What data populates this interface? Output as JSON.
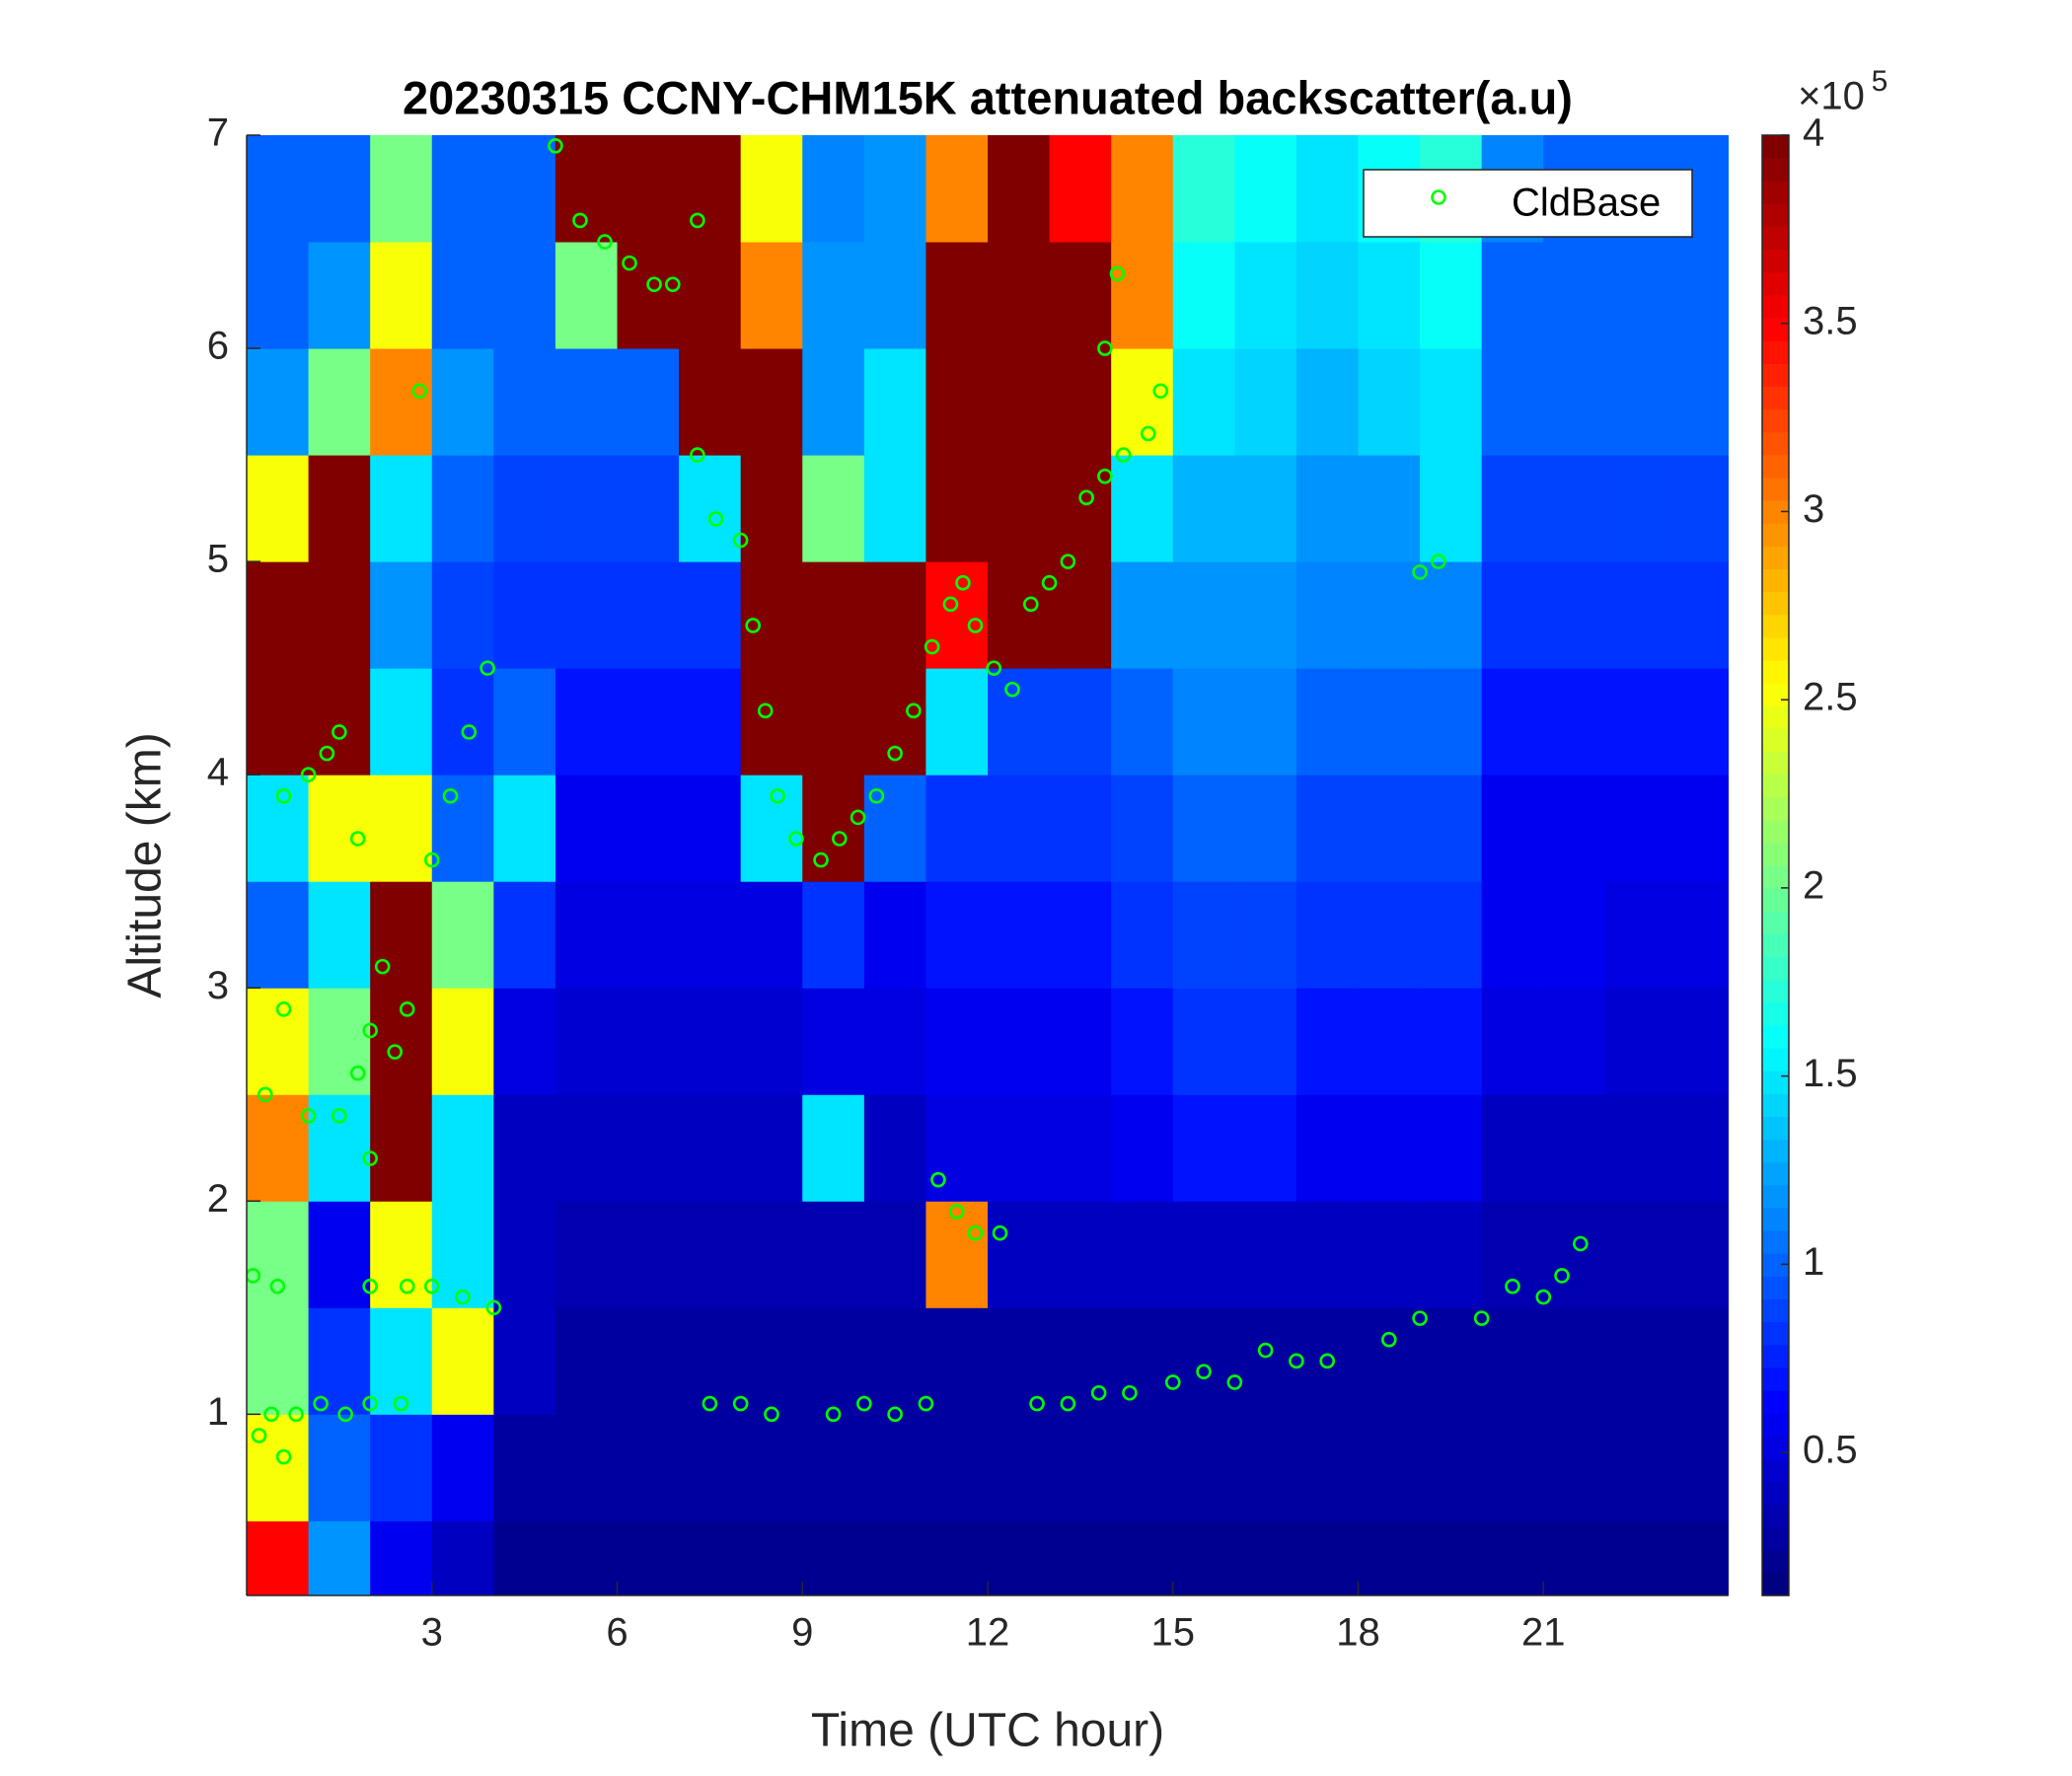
{
  "chart_data": {
    "type": "heatmap",
    "title": "20230315 CCNY-CHM15K attenuated backscatter(a.u)",
    "x_label": "Time (UTC hour)",
    "y_label": "Altitude (km)",
    "xlim": [
      0,
      24
    ],
    "ylim": [
      0.15,
      7
    ],
    "xticks": [
      3,
      6,
      9,
      12,
      15,
      18,
      21
    ],
    "yticks": [
      1,
      2,
      3,
      4,
      5,
      6,
      7
    ],
    "colormap": "jet",
    "clim": [
      0.12,
      4
    ],
    "colorbar_ticks": [
      0.5,
      1,
      1.5,
      2,
      2.5,
      3,
      3.5,
      4
    ],
    "colorbar_multiplier": "×10",
    "colorbar_exponent": "5",
    "legend_position": "upper right",
    "heatmap": {
      "x": [
        0.5,
        1.5,
        2.5,
        3.5,
        4.5,
        5.5,
        6.5,
        7.5,
        8.5,
        9.5,
        10.5,
        11.5,
        12.5,
        13.5,
        14.5,
        15.5,
        16.5,
        17.5,
        18.5,
        19.5,
        20.5,
        21.5,
        22.5,
        23.5
      ],
      "y": [
        0.25,
        0.75,
        1.25,
        1.75,
        2.25,
        2.75,
        3.25,
        3.75,
        4.25,
        4.75,
        5.25,
        5.75,
        6.25,
        6.75
      ],
      "z": [
        [
          3.5,
          1.2,
          0.6,
          0.4,
          0.2,
          0.2,
          0.2,
          0.2,
          0.2,
          0.2,
          0.2,
          0.2,
          0.2,
          0.2,
          0.2,
          0.2,
          0.2,
          0.2,
          0.2,
          0.2,
          0.2,
          0.2,
          0.2,
          0.2
        ],
        [
          2.5,
          1.0,
          0.8,
          0.6,
          0.3,
          0.25,
          0.25,
          0.25,
          0.25,
          0.25,
          0.25,
          0.25,
          0.25,
          0.25,
          0.25,
          0.25,
          0.25,
          0.25,
          0.25,
          0.25,
          0.25,
          0.25,
          0.25,
          0.25
        ],
        [
          2.0,
          0.8,
          1.5,
          2.5,
          0.4,
          0.3,
          0.3,
          0.3,
          0.3,
          0.3,
          0.3,
          0.3,
          0.3,
          0.3,
          0.3,
          0.3,
          0.3,
          0.3,
          0.3,
          0.3,
          0.3,
          0.3,
          0.3,
          0.3
        ],
        [
          2.0,
          0.6,
          2.5,
          1.5,
          0.4,
          0.35,
          0.35,
          0.35,
          0.35,
          0.35,
          0.35,
          3.0,
          0.4,
          0.4,
          0.4,
          0.4,
          0.4,
          0.4,
          0.4,
          0.4,
          0.35,
          0.35,
          0.35,
          0.35
        ],
        [
          3.0,
          1.5,
          4,
          1.5,
          0.4,
          0.4,
          0.4,
          0.4,
          0.4,
          1.5,
          0.4,
          0.5,
          0.5,
          0.5,
          0.6,
          0.7,
          0.7,
          0.6,
          0.6,
          0.6,
          0.4,
          0.4,
          0.4,
          0.4
        ],
        [
          2.5,
          2.0,
          4,
          2.5,
          0.5,
          0.45,
          0.45,
          0.45,
          0.45,
          0.5,
          0.5,
          0.6,
          0.6,
          0.6,
          0.7,
          0.8,
          0.8,
          0.7,
          0.7,
          0.7,
          0.5,
          0.5,
          0.45,
          0.45
        ],
        [
          1.0,
          1.5,
          4,
          2.0,
          0.8,
          0.5,
          0.5,
          0.5,
          0.5,
          0.8,
          0.55,
          0.7,
          0.7,
          0.7,
          0.8,
          0.9,
          0.9,
          0.8,
          0.8,
          0.8,
          0.55,
          0.55,
          0.5,
          0.5
        ],
        [
          1.5,
          2.5,
          2.5,
          1.0,
          1.5,
          0.6,
          0.6,
          0.6,
          1.5,
          4,
          1.0,
          0.8,
          0.8,
          0.8,
          0.9,
          1.0,
          1.0,
          0.9,
          0.9,
          0.9,
          0.6,
          0.6,
          0.6,
          0.6
        ],
        [
          4,
          4,
          1.5,
          0.8,
          1.0,
          0.7,
          0.7,
          0.7,
          4,
          4,
          4,
          1.5,
          0.9,
          0.9,
          1.0,
          1.1,
          1.1,
          1.0,
          1.0,
          1.0,
          0.7,
          0.7,
          0.7,
          0.7
        ],
        [
          4,
          4,
          1.2,
          0.9,
          0.8,
          0.8,
          0.8,
          0.8,
          4,
          4,
          4,
          3.5,
          4,
          4,
          1.2,
          1.2,
          1.2,
          1.1,
          1.1,
          1.1,
          0.8,
          0.8,
          0.8,
          0.8
        ],
        [
          2.5,
          4,
          1.5,
          1.0,
          0.9,
          0.9,
          0.9,
          1.5,
          4,
          2.0,
          1.5,
          4,
          4,
          4,
          1.5,
          1.3,
          1.3,
          1.2,
          1.2,
          1.5,
          0.9,
          0.9,
          0.9,
          0.9
        ],
        [
          1.2,
          2.0,
          3.0,
          1.2,
          1.0,
          1.0,
          1.0,
          4,
          4,
          1.2,
          1.5,
          4,
          4,
          4,
          2.5,
          1.5,
          1.4,
          1.3,
          1.4,
          1.5,
          1.0,
          1.0,
          1.0,
          1.0
        ],
        [
          1.0,
          1.2,
          2.5,
          1.0,
          1.0,
          2.0,
          4,
          4,
          3.0,
          1.2,
          1.2,
          4,
          4,
          4,
          3.0,
          1.6,
          1.5,
          1.4,
          1.5,
          1.6,
          1.0,
          1.0,
          1.0,
          1.0
        ],
        [
          1.0,
          1.0,
          2.0,
          1.0,
          1.0,
          4,
          4,
          4,
          2.5,
          1.1,
          1.2,
          3.0,
          4,
          3.5,
          3.0,
          1.7,
          1.6,
          1.5,
          1.6,
          1.7,
          1.1,
          1.0,
          1.0,
          1.0
        ]
      ]
    },
    "series": [
      {
        "name": "CldBase",
        "type": "scatter",
        "color": "#00ff00",
        "x": [
          0.2,
          0.4,
          0.6,
          0.8,
          1.2,
          1.6,
          2.0,
          2.5,
          0.1,
          0.5,
          0.3,
          0.6,
          1.0,
          1.5,
          1.8,
          2.0,
          2.2,
          2.4,
          2.6,
          2.0,
          1.8,
          2.0,
          2.6,
          3.0,
          3.5,
          4.0,
          0.6,
          1.0,
          1.3,
          1.5,
          2.8,
          3.0,
          3.3,
          3.6,
          3.9,
          5.0,
          5.4,
          5.8,
          6.2,
          6.6,
          6.9,
          7.3,
          7.3,
          7.6,
          8.0,
          8.2,
          8.4,
          8.6,
          8.9,
          9.3,
          9.6,
          9.9,
          10.2,
          10.5,
          10.8,
          11.1,
          11.4,
          11.6,
          11.8,
          12.1,
          12.4,
          12.7,
          13.0,
          13.3,
          13.6,
          13.9,
          14.2,
          14.6,
          14.8,
          13.9,
          14.1,
          11.2,
          11.5,
          11.8,
          12.2,
          7.5,
          8.0,
          8.5,
          9.5,
          10.0,
          10.5,
          11.0,
          12.8,
          13.3,
          13.8,
          14.3,
          15.0,
          15.5,
          16.0,
          16.5,
          17.0,
          17.5,
          18.5,
          19.0,
          19.0,
          19.3,
          20.0,
          20.5,
          21.0,
          21.3,
          21.6
        ],
        "y": [
          0.9,
          1.0,
          0.8,
          1.0,
          1.05,
          1.0,
          1.05,
          1.05,
          1.65,
          1.6,
          2.5,
          2.9,
          2.4,
          2.4,
          2.6,
          2.8,
          3.1,
          2.7,
          2.9,
          2.2,
          3.7,
          1.6,
          1.6,
          1.6,
          1.55,
          1.5,
          3.9,
          4.0,
          4.1,
          4.2,
          5.8,
          3.6,
          3.9,
          4.2,
          4.5,
          6.95,
          6.6,
          6.5,
          6.4,
          6.3,
          6.3,
          6.6,
          5.5,
          5.2,
          5.1,
          4.7,
          4.3,
          3.9,
          3.7,
          3.6,
          3.7,
          3.8,
          3.9,
          4.1,
          4.3,
          4.6,
          4.8,
          4.9,
          4.7,
          4.5,
          4.4,
          4.8,
          4.9,
          5.0,
          5.3,
          5.4,
          5.5,
          5.6,
          5.8,
          6.0,
          6.35,
          2.1,
          1.95,
          1.85,
          1.85,
          1.05,
          1.05,
          1.0,
          1.0,
          1.05,
          1.0,
          1.05,
          1.05,
          1.05,
          1.1,
          1.1,
          1.15,
          1.2,
          1.15,
          1.3,
          1.25,
          1.25,
          1.35,
          1.45,
          4.95,
          5.0,
          1.45,
          1.6,
          1.55,
          1.65,
          1.8
        ]
      }
    ]
  }
}
